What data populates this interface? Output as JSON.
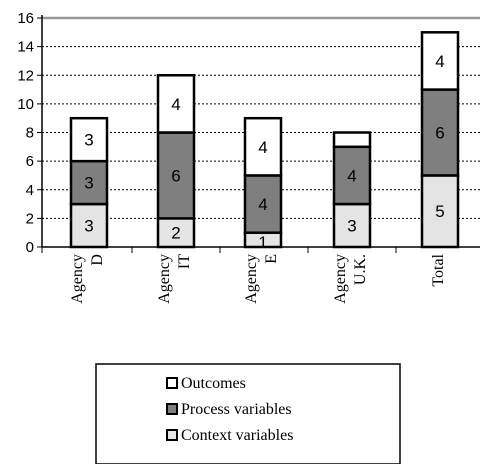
{
  "chart_data": {
    "type": "bar",
    "stacked": true,
    "categories": [
      [
        "Agency",
        "D"
      ],
      [
        "Agency",
        "IT"
      ],
      [
        "Agency",
        "E"
      ],
      [
        "Agency",
        "U.K."
      ],
      [
        "Total"
      ]
    ],
    "series": [
      {
        "name": "Context variables",
        "values": [
          3,
          2,
          1,
          3,
          5
        ],
        "color": "#e4e4e4"
      },
      {
        "name": "Process variables",
        "values": [
          3,
          6,
          4,
          4,
          6
        ],
        "color": "#7f7f7f"
      },
      {
        "name": "Outcomes",
        "values": [
          3,
          4,
          4,
          1,
          4
        ],
        "color": "#ffffff"
      }
    ],
    "data_labels": [
      [
        "3",
        "2",
        "1",
        "3",
        "5"
      ],
      [
        "3",
        "6",
        "4",
        "4",
        "6"
      ],
      [
        "3",
        "4",
        "4",
        "",
        "4"
      ]
    ],
    "ylim": [
      0,
      16
    ],
    "yticks": [
      0,
      2,
      4,
      6,
      8,
      10,
      12,
      14,
      16
    ],
    "grid": true,
    "legend": {
      "placement": "bottom",
      "order": [
        "Outcomes",
        "Process variables",
        "Context variables"
      ]
    },
    "title": "",
    "xlabel": "",
    "ylabel": ""
  }
}
